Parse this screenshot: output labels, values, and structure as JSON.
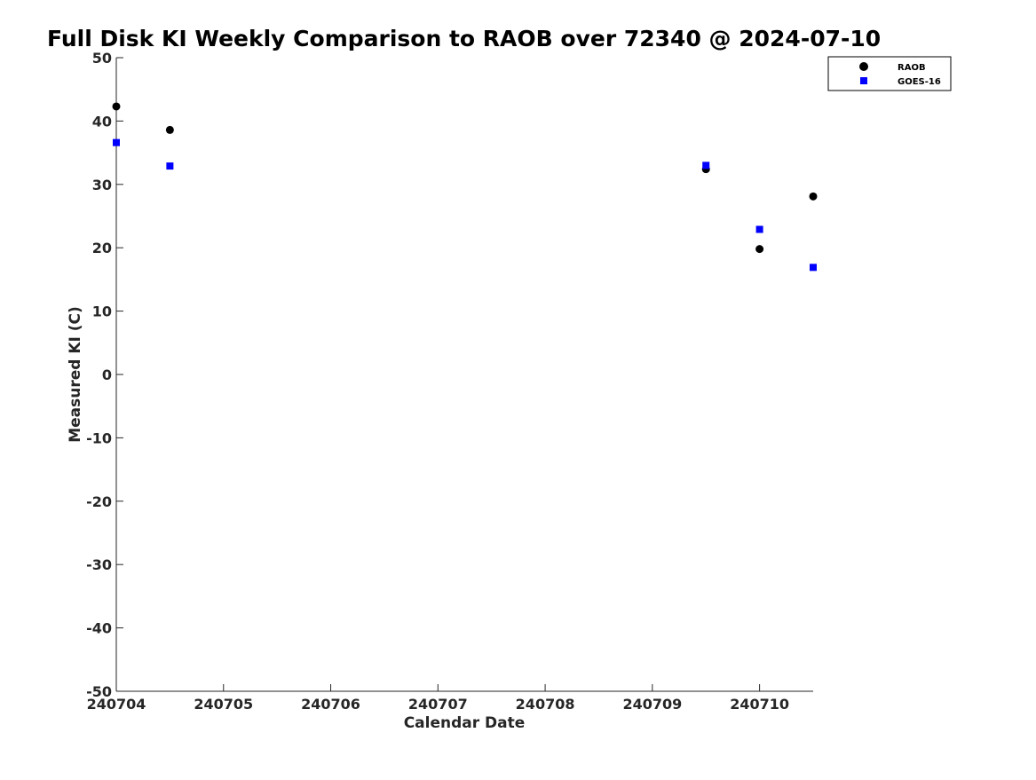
{
  "chart_data": {
    "type": "scatter",
    "title": "Full Disk KI Weekly Comparison to RAOB over 72340 @ 2024-07-10",
    "xlabel": "Calendar Date",
    "ylabel": "Measured KI (C)",
    "x_ticks": [
      "240704",
      "240705",
      "240706",
      "240707",
      "240708",
      "240709",
      "240710"
    ],
    "xlim": [
      0,
      6.5
    ],
    "ylim": [
      -50,
      50
    ],
    "y_ticks": [
      "50",
      "40",
      "30",
      "20",
      "10",
      "0",
      "-10",
      "-20",
      "-30",
      "-40",
      "-50"
    ],
    "grid": false,
    "legend_position": "top-right",
    "series": [
      {
        "name": "RAOB",
        "marker": "circle",
        "color": "#000000",
        "points": [
          {
            "x": "240704 00Z",
            "x_pos": 0,
            "y": 42.3
          },
          {
            "x": "240704 12Z",
            "x_pos": 0.5,
            "y": 38.6
          },
          {
            "x": "240709 12Z",
            "x_pos": 5.5,
            "y": 32.4
          },
          {
            "x": "240710 00Z",
            "x_pos": 6,
            "y": 19.8
          },
          {
            "x": "240710 12Z",
            "x_pos": 6.5,
            "y": 28.1
          }
        ]
      },
      {
        "name": "GOES-16",
        "marker": "square",
        "color": "#0000ff",
        "points": [
          {
            "x": "240704 00Z",
            "x_pos": 0,
            "y": 36.6
          },
          {
            "x": "240704 12Z",
            "x_pos": 0.5,
            "y": 32.9
          },
          {
            "x": "240709 12Z",
            "x_pos": 5.5,
            "y": 33.0
          },
          {
            "x": "240710 00Z",
            "x_pos": 6,
            "y": 22.9
          },
          {
            "x": "240710 12Z",
            "x_pos": 6.5,
            "y": 16.9
          }
        ]
      }
    ]
  }
}
